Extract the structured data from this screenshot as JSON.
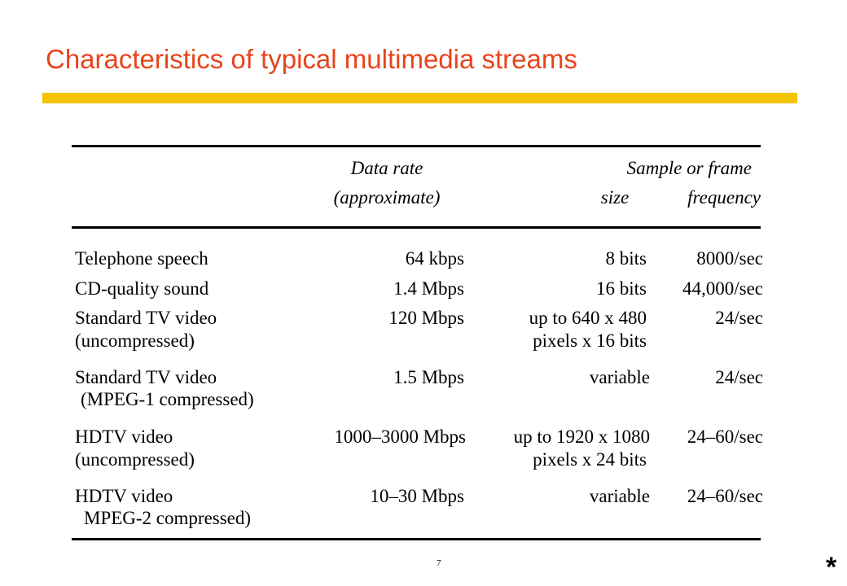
{
  "title": "Characteristics of typical multimedia streams",
  "colors": {
    "title": "#e8441c",
    "title_bar": "#f5c400"
  },
  "table": {
    "headers": {
      "data_rate_line1": "Data rate",
      "data_rate_line2": "(approximate)",
      "sample_or_frame": "Sample or frame",
      "size": "size",
      "frequency": "frequency"
    },
    "rows": [
      {
        "name_line1": "Telephone speech",
        "name_line2": "",
        "rate": "64  kbps",
        "size_line1": "8 bits",
        "size_line2": "",
        "frequency": "8000/sec"
      },
      {
        "name_line1": "CD-quality sound",
        "name_line2": "",
        "rate": "1.4 Mbps",
        "size_line1": "16 bits",
        "size_line2": "",
        "frequency": "44,000/sec"
      },
      {
        "name_line1": "Standard TV video",
        "name_line2": "(uncompressed)",
        "rate": "120 Mbps",
        "size_line1": "up to 640 x 480",
        "size_line2": "pixels x 16 bits",
        "frequency": "24/sec"
      },
      {
        "name_line1": "Standard TV video",
        "name_line2": "(MPEG-1 compressed)",
        "rate": "1.5 Mbps",
        "size_line1": "variable",
        "size_line2": "",
        "frequency": "24/sec"
      },
      {
        "name_line1": "HDTV video",
        "name_line2": "(uncompressed)",
        "rate": "1000–3000 Mbps",
        "size_line1": "up to 1920 x 1080",
        "size_line2": "pixels x 24 bits",
        "frequency": "24–60/sec"
      },
      {
        "name_line1": "HDTV video",
        "name_line2": "MPEG-2 compressed)",
        "rate": "10–30 Mbps",
        "size_line1": "variable",
        "size_line2": "",
        "frequency": "24–60/sec"
      }
    ]
  },
  "footer": {
    "page_number": "7",
    "marker": "*"
  }
}
